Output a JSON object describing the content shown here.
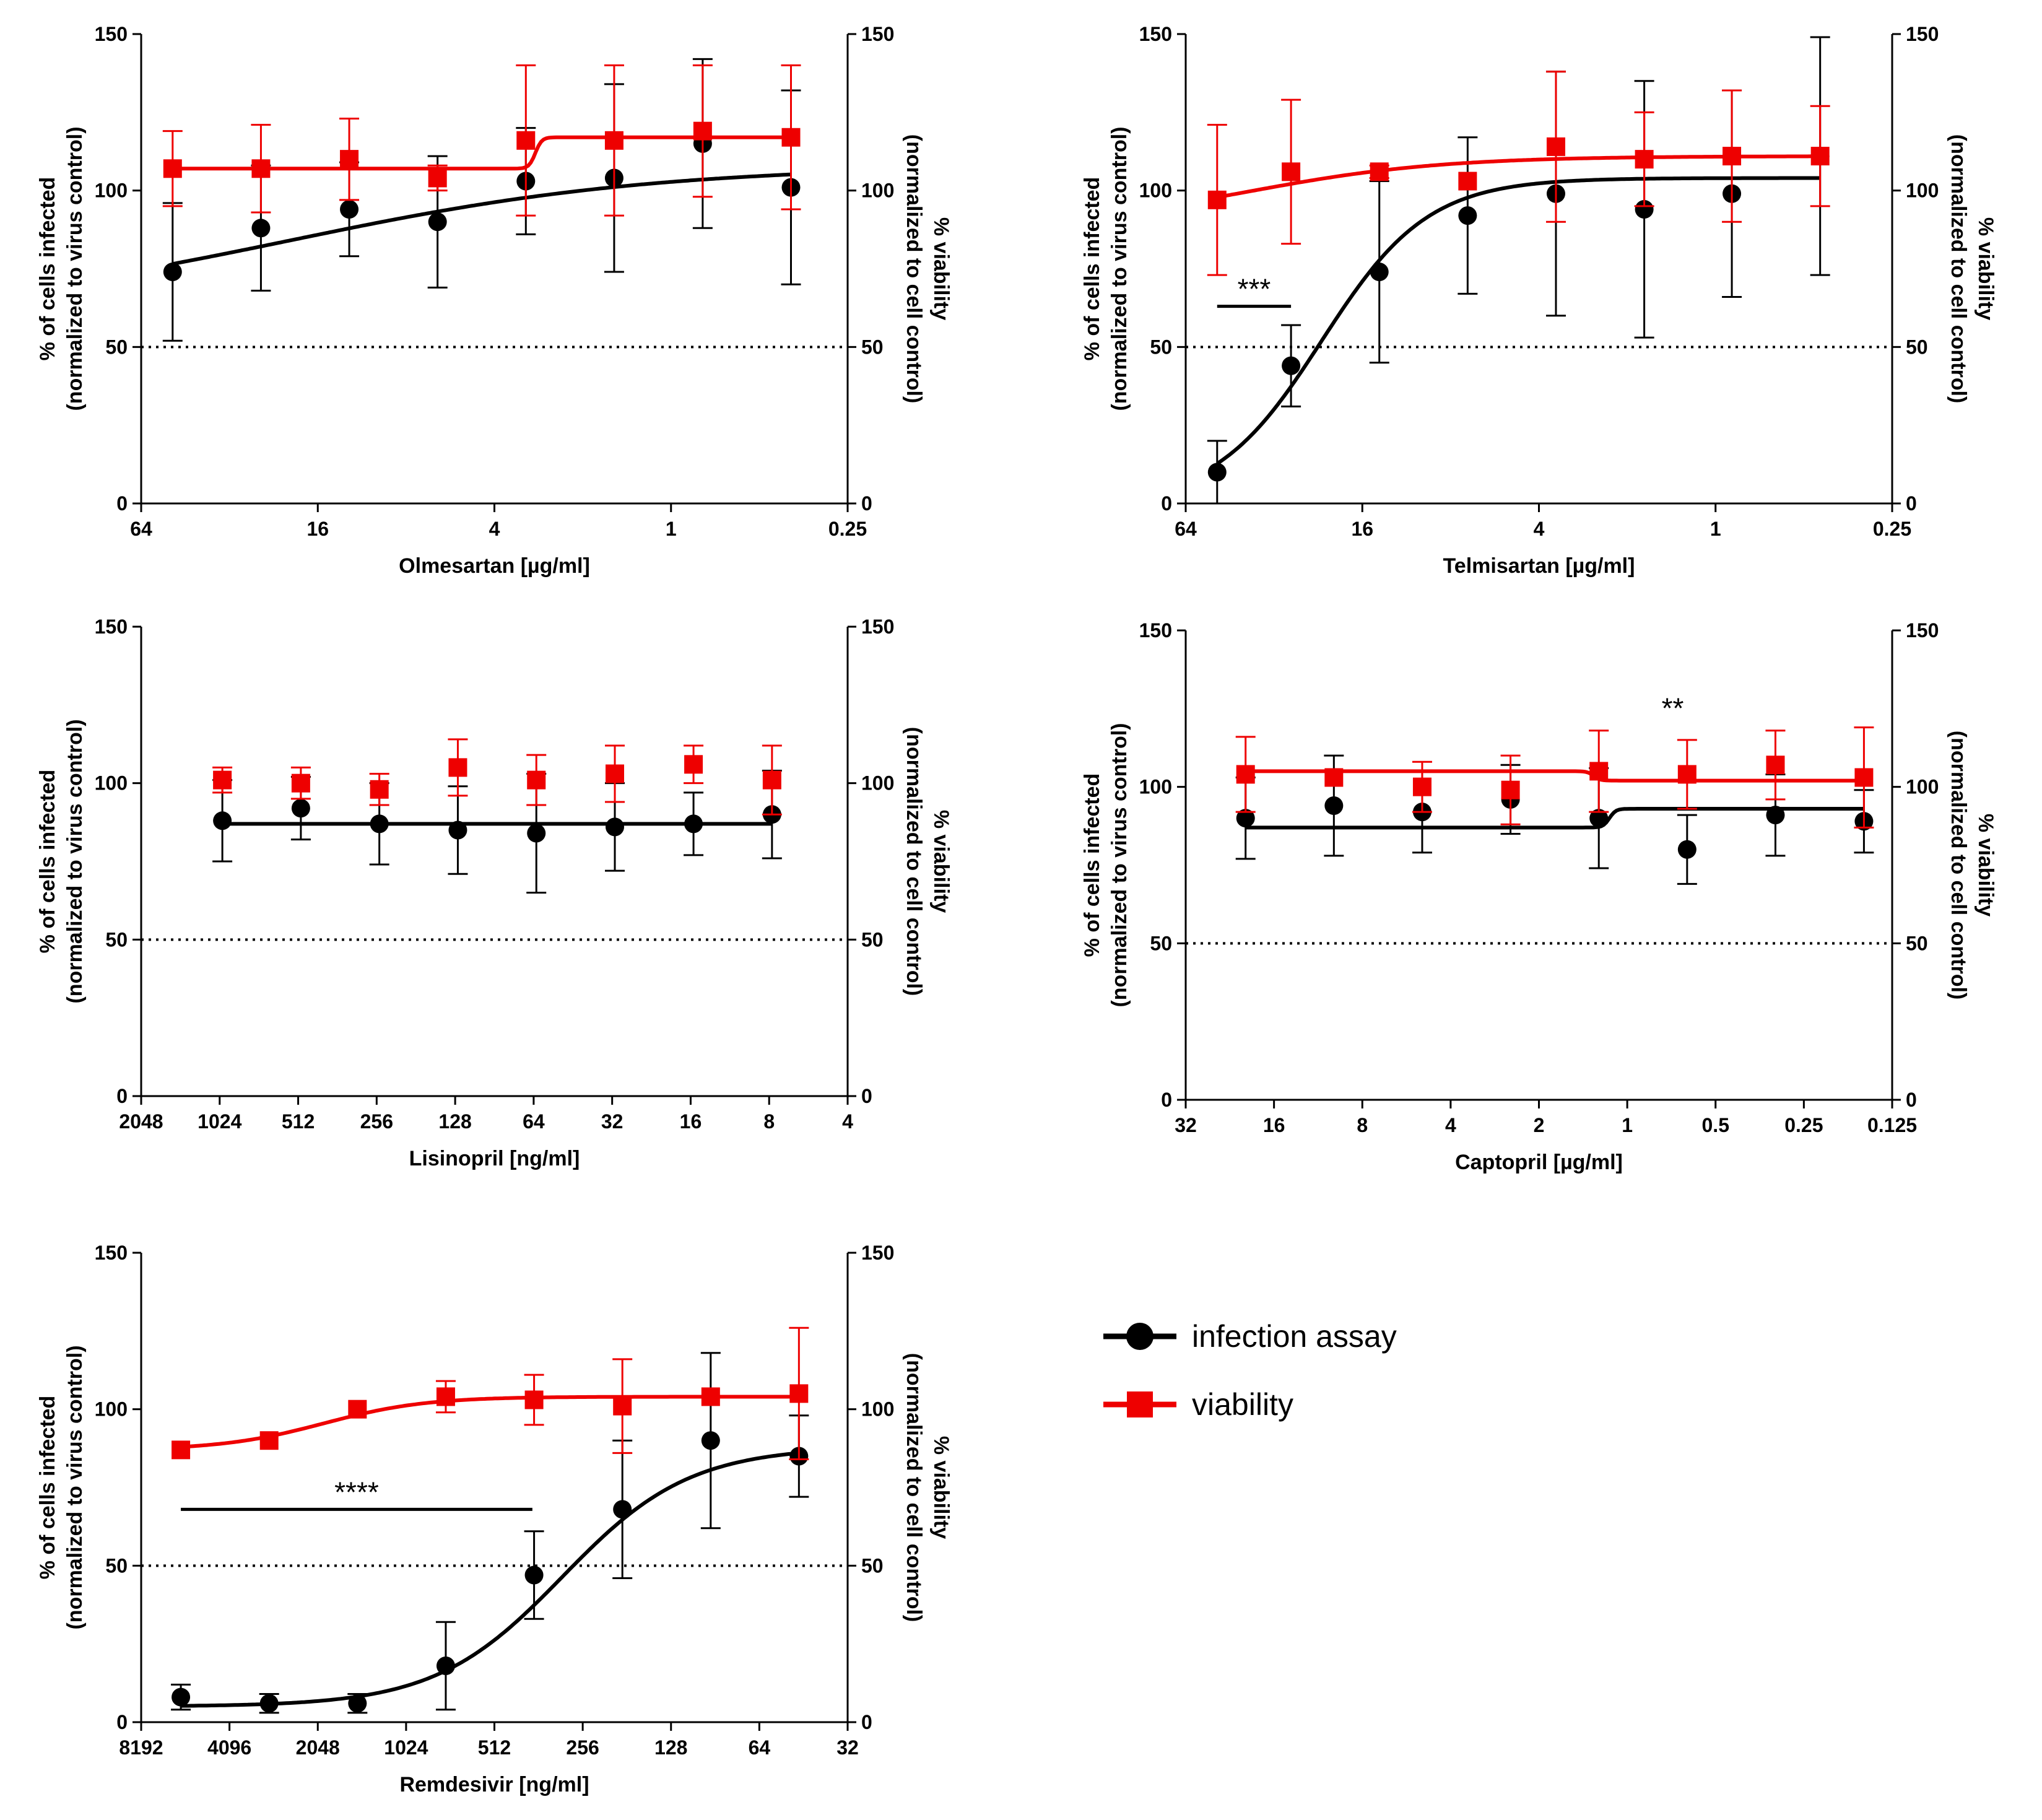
{
  "legend": {
    "items": [
      {
        "label": "infection assay",
        "color": "#000000",
        "marker": "circle"
      },
      {
        "label": "viability",
        "color": "#ee0000",
        "marker": "square"
      }
    ]
  },
  "chart_data": [
    {
      "type": "scatter",
      "id": "olmesartan",
      "xlabel": "Olmesartan [µg/ml]",
      "ylabel": "% of cells infected",
      "ylabel2": "(normalized to virus control)",
      "y2label": "% viability",
      "y2label2": "(normalized to cell control)",
      "x_scale": "log2",
      "x_reversed": true,
      "xlim": [
        64,
        0.25
      ],
      "xticks": [
        64,
        16,
        4,
        1,
        0.25
      ],
      "xticklabels": [
        "64",
        "16",
        "4",
        "1",
        "0.25"
      ],
      "ylim": [
        0,
        150
      ],
      "yticks": [
        0,
        50,
        100,
        150
      ],
      "reference_line": 50,
      "series": [
        {
          "name": "infection assay",
          "color": "#000000",
          "marker": "circle",
          "x": [
            50,
            25,
            12.5,
            6.25,
            3.125,
            1.5625,
            0.78,
            0.39
          ],
          "y": [
            74,
            88,
            94,
            90,
            103,
            104,
            115,
            101
          ],
          "err": [
            22,
            20,
            15,
            21,
            17,
            30,
            27,
            31
          ],
          "fit": "sigmoid",
          "fit_params": {
            "bottom": 60,
            "top": 108,
            "ec50": 20,
            "hill": 0.7
          }
        },
        {
          "name": "viability",
          "color": "#ee0000",
          "marker": "square",
          "x": [
            50,
            25,
            12.5,
            6.25,
            3.125,
            1.5625,
            0.78,
            0.39
          ],
          "y": [
            107,
            107,
            110,
            104,
            116,
            116,
            119,
            117
          ],
          "err": [
            12,
            14,
            13,
            4,
            24,
            24,
            21,
            23
          ],
          "fit": "step",
          "fit_params": {
            "bottom": 107,
            "top": 117,
            "ec50": 2.9,
            "hill": 40
          }
        }
      ]
    },
    {
      "type": "scatter",
      "id": "telmisartan",
      "xlabel": "Telmisartan [µg/ml]",
      "ylabel": "% of cells infected",
      "ylabel2": "(normalized to virus control)",
      "y2label": "% viability",
      "y2label2": "(normalized to cell control)",
      "x_scale": "log2",
      "x_reversed": true,
      "xlim": [
        64,
        0.25
      ],
      "xticks": [
        64,
        16,
        4,
        1,
        0.25
      ],
      "xticklabels": [
        "64",
        "16",
        "4",
        "1",
        "0.25"
      ],
      "ylim": [
        0,
        150
      ],
      "yticks": [
        0,
        50,
        100,
        150
      ],
      "reference_line": 50,
      "annotation": {
        "text": "***",
        "x_from": 50,
        "x_to": 28,
        "y": 63
      },
      "series": [
        {
          "name": "infection assay",
          "color": "#000000",
          "marker": "circle",
          "x": [
            50,
            28,
            14,
            7,
            3.5,
            1.75,
            0.88,
            0.44
          ],
          "y": [
            10,
            44,
            74,
            92,
            99,
            94,
            99,
            111
          ],
          "err": [
            10,
            13,
            29,
            25,
            39,
            41,
            33,
            38
          ],
          "fit": "sigmoid",
          "fit_params": {
            "bottom": 0,
            "top": 104,
            "ec50": 22,
            "hill": 2.4
          }
        },
        {
          "name": "viability",
          "color": "#ee0000",
          "marker": "square",
          "x": [
            50,
            28,
            14,
            7,
            3.5,
            1.75,
            0.88,
            0.44
          ],
          "y": [
            97,
            106,
            106,
            103,
            114,
            110,
            111,
            111
          ],
          "err": [
            24,
            23,
            2,
            0,
            24,
            15,
            21,
            16
          ],
          "fit": "sigmoid",
          "fit_params": {
            "bottom": 88,
            "top": 111,
            "ec50": 40,
            "hill": 1.3
          }
        }
      ]
    },
    {
      "type": "scatter",
      "id": "lisinopril",
      "xlabel": "Lisinopril [ng/ml]",
      "ylabel": "% of cells infected",
      "ylabel2": "(normalized to virus control)",
      "y2label": "% viability",
      "y2label2": "(normalized to cell control)",
      "x_scale": "log2",
      "x_reversed": true,
      "xlim": [
        2048,
        4
      ],
      "xticks": [
        2048,
        1024,
        512,
        256,
        128,
        64,
        32,
        16,
        8,
        4
      ],
      "xticklabels": [
        "2048",
        "1024",
        "512",
        "256",
        "128",
        "64",
        "32",
        "16",
        "8",
        "4"
      ],
      "ylim": [
        0,
        150
      ],
      "yticks": [
        0,
        50,
        100,
        150
      ],
      "reference_line": 50,
      "series": [
        {
          "name": "infection assay",
          "color": "#000000",
          "marker": "circle",
          "x": [
            1000,
            500,
            250,
            125,
            62.5,
            31.25,
            15.6,
            7.8
          ],
          "y": [
            88,
            92,
            87,
            85,
            84,
            86,
            87,
            90
          ],
          "err": [
            13,
            10,
            13,
            14,
            19,
            14,
            10,
            14
          ],
          "fit": "flat",
          "fit_params": {
            "value": 87
          }
        },
        {
          "name": "viability",
          "color": "#ee0000",
          "marker": "square",
          "x": [
            1000,
            500,
            250,
            125,
            62.5,
            31.25,
            15.6,
            7.8
          ],
          "y": [
            101,
            100,
            98,
            105,
            101,
            103,
            106,
            101
          ],
          "err": [
            4,
            5,
            5,
            9,
            8,
            9,
            6,
            11
          ],
          "fit": "none"
        }
      ]
    },
    {
      "type": "scatter",
      "id": "captopril",
      "xlabel": "Captopril [µg/ml]",
      "ylabel": "% of cells infected",
      "ylabel2": "(normalized to virus control)",
      "y2label": "% viability",
      "y2label2": "(normalized to cell control)",
      "x_scale": "log2",
      "x_reversed": true,
      "xlim": [
        32,
        0.125
      ],
      "xticks": [
        32,
        16,
        8,
        4,
        2,
        1,
        0.5,
        0.25,
        0.125
      ],
      "xticklabels": [
        "32",
        "16",
        "8",
        "4",
        "2",
        "1",
        "0.5",
        "0.25",
        "0.125"
      ],
      "ylim": [
        0,
        150
      ],
      "yticks": [
        0,
        50,
        100,
        150
      ],
      "reference_line": 50,
      "annotation": {
        "text": "**",
        "x": 0.7,
        "y": 122
      },
      "series": [
        {
          "name": "infection assay",
          "color": "#000000",
          "marker": "circle",
          "x": [
            20,
            10,
            5,
            2.5,
            1.25,
            0.625,
            0.3125,
            0.156
          ],
          "y": [
            90,
            94,
            92,
            96,
            90,
            80,
            91,
            89
          ],
          "err": [
            13,
            16,
            13,
            11,
            16,
            11,
            13,
            10
          ],
          "fit": "step",
          "fit_params": {
            "bottom": 87,
            "top": 93,
            "ec50": 1.15,
            "hill": 40
          }
        },
        {
          "name": "viability",
          "color": "#ee0000",
          "marker": "square",
          "x": [
            20,
            10,
            5,
            2.5,
            1.25,
            0.625,
            0.3125,
            0.156
          ],
          "y": [
            104,
            103,
            100,
            99,
            105,
            104,
            107,
            103
          ],
          "err": [
            12,
            0,
            8,
            11,
            13,
            11,
            11,
            16
          ],
          "fit": "step_inv",
          "fit_params": {
            "bottom": 102,
            "top": 105,
            "ec50": 1.3,
            "hill": 40
          }
        }
      ]
    },
    {
      "type": "scatter",
      "id": "remdesivir",
      "xlabel": "Remdesivir [ng/ml]",
      "ylabel": "% of cells infected",
      "ylabel2": "(normalized to virus control)",
      "y2label": "% viability",
      "y2label2": "(normalized to cell control)",
      "x_scale": "log2",
      "x_reversed": true,
      "xlim": [
        8192,
        32
      ],
      "xticks": [
        8192,
        4096,
        2048,
        1024,
        512,
        256,
        128,
        64,
        32
      ],
      "xticklabels": [
        "8192",
        "4096",
        "2048",
        "1024",
        "512",
        "256",
        "128",
        "64",
        "32"
      ],
      "ylim": [
        0,
        150
      ],
      "yticks": [
        0,
        50,
        100,
        150
      ],
      "reference_line": 50,
      "annotation": {
        "text": "****",
        "x_from": 6000,
        "x_to": 380,
        "y": 68
      },
      "series": [
        {
          "name": "infection assay",
          "color": "#000000",
          "marker": "circle",
          "x": [
            6000,
            3000,
            1500,
            750,
            375,
            187.5,
            93.75,
            46.9
          ],
          "y": [
            8,
            6,
            6,
            18,
            47,
            68,
            90,
            85
          ],
          "err": [
            4,
            3,
            3,
            14,
            14,
            22,
            28,
            13
          ],
          "fit": "sigmoid",
          "fit_params": {
            "bottom": 5,
            "top": 88,
            "ec50": 300,
            "hill": 2.0
          }
        },
        {
          "name": "viability",
          "color": "#ee0000",
          "marker": "square",
          "x": [
            6000,
            3000,
            1500,
            750,
            375,
            187.5,
            93.75,
            46.9
          ],
          "y": [
            87,
            90,
            100,
            104,
            103,
            101,
            104,
            105
          ],
          "err": [
            0,
            0,
            0,
            5,
            8,
            15,
            0,
            21
          ],
          "fit": "sigmoid",
          "fit_params": {
            "bottom": 87,
            "top": 104,
            "ec50": 1950,
            "hill": 2.5
          }
        }
      ]
    }
  ]
}
